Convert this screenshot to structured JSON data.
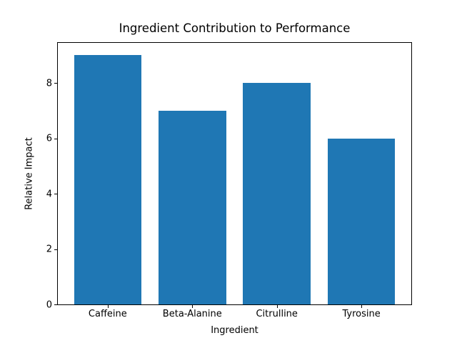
{
  "chart_data": {
    "type": "bar",
    "title": "Ingredient Contribution to Performance",
    "xlabel": "Ingredient",
    "ylabel": "Relative Impact",
    "categories": [
      "Caffeine",
      "Beta-Alanine",
      "Citrulline",
      "Tyrosine"
    ],
    "values": [
      9,
      7,
      8,
      6
    ],
    "yticks": [
      0,
      2,
      4,
      6,
      8
    ],
    "ylim": [
      0,
      9.45
    ],
    "xlim": [
      -0.59,
      3.59
    ],
    "bar_width": 0.8,
    "bar_color": "#1f77b4",
    "axis_color": "#000000",
    "background_color": "#ffffff",
    "grid": false,
    "legend": "none"
  }
}
